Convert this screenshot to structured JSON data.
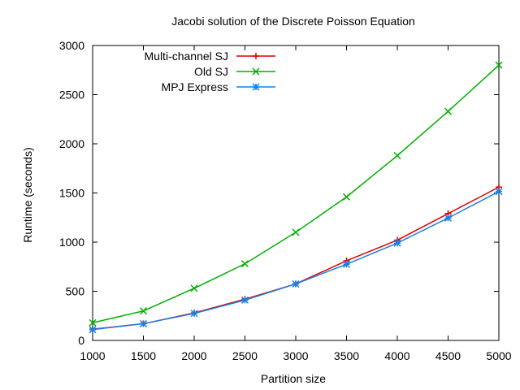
{
  "chart_data": {
    "type": "line",
    "title": "Jacobi solution of the Discrete Poisson Equation",
    "xlabel": "Partition size",
    "ylabel": "Runtime (seconds)",
    "xlim": [
      1000,
      5000
    ],
    "ylim": [
      0,
      3000
    ],
    "x_ticks": [
      "1000",
      "1500",
      "2000",
      "2500",
      "3000",
      "3500",
      "4000",
      "4500",
      "5000"
    ],
    "y_ticks": [
      "0",
      "500",
      "1000",
      "1500",
      "2000",
      "2500",
      "3000"
    ],
    "grid": false,
    "legend_position": "top-left",
    "x": [
      1000,
      1500,
      2000,
      2500,
      3000,
      3500,
      4000,
      4500,
      5000
    ],
    "series": [
      {
        "name": "Multi-channel SJ",
        "color": "#e00000",
        "marker": "plus",
        "values": [
          115,
          170,
          280,
          420,
          575,
          810,
          1020,
          1290,
          1560
        ]
      },
      {
        "name": "Old SJ",
        "color": "#00b000",
        "marker": "cross",
        "values": [
          180,
          300,
          530,
          780,
          1100,
          1460,
          1880,
          2330,
          2800
        ]
      },
      {
        "name": "MPJ Express",
        "color": "#1a80e0",
        "marker": "star",
        "values": [
          110,
          170,
          275,
          410,
          575,
          775,
          990,
          1245,
          1515
        ]
      }
    ]
  }
}
